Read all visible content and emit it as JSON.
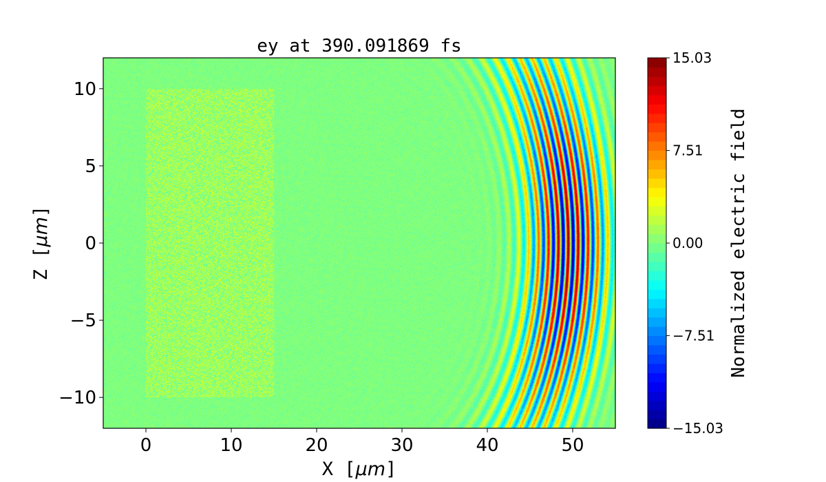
{
  "chart_data": {
    "type": "heatmap",
    "title": "ey at 390.091869 fs",
    "xlabel_prefix": "X [",
    "xlabel_unit": "μm",
    "xlabel_suffix": "]",
    "ylabel_prefix": "Z [",
    "ylabel_unit": "μm",
    "ylabel_suffix": "]",
    "xlim": [
      -5,
      55
    ],
    "ylim": [
      -12,
      12
    ],
    "x_ticks": [
      0,
      10,
      20,
      30,
      40,
      50
    ],
    "x_tick_labels": [
      "0",
      "10",
      "20",
      "30",
      "40",
      "50"
    ],
    "y_ticks": [
      -10,
      -5,
      0,
      5,
      10
    ],
    "y_tick_labels": [
      "−10",
      "−5",
      "0",
      "5",
      "10"
    ],
    "colormap": "jet",
    "colorbar": {
      "label": "Normalized electric field",
      "min": -15.03,
      "max": 15.03,
      "ticks": [
        -15.03,
        -7.51,
        0.0,
        7.51,
        15.03
      ],
      "tick_labels": [
        "−15.03",
        "−7.51",
        "0.00",
        "7.51",
        "15.03"
      ],
      "levels": 40
    },
    "field_description": {
      "noisy_slab": {
        "x": [
          0,
          15
        ],
        "z": [
          -10,
          10
        ],
        "amplitude": 3.0
      },
      "laser_pulse": {
        "x_front": 55,
        "x_tail": 33,
        "wavelength": 0.8,
        "curvature_center_x": 25,
        "peak_amplitude": 15.03
      }
    }
  }
}
